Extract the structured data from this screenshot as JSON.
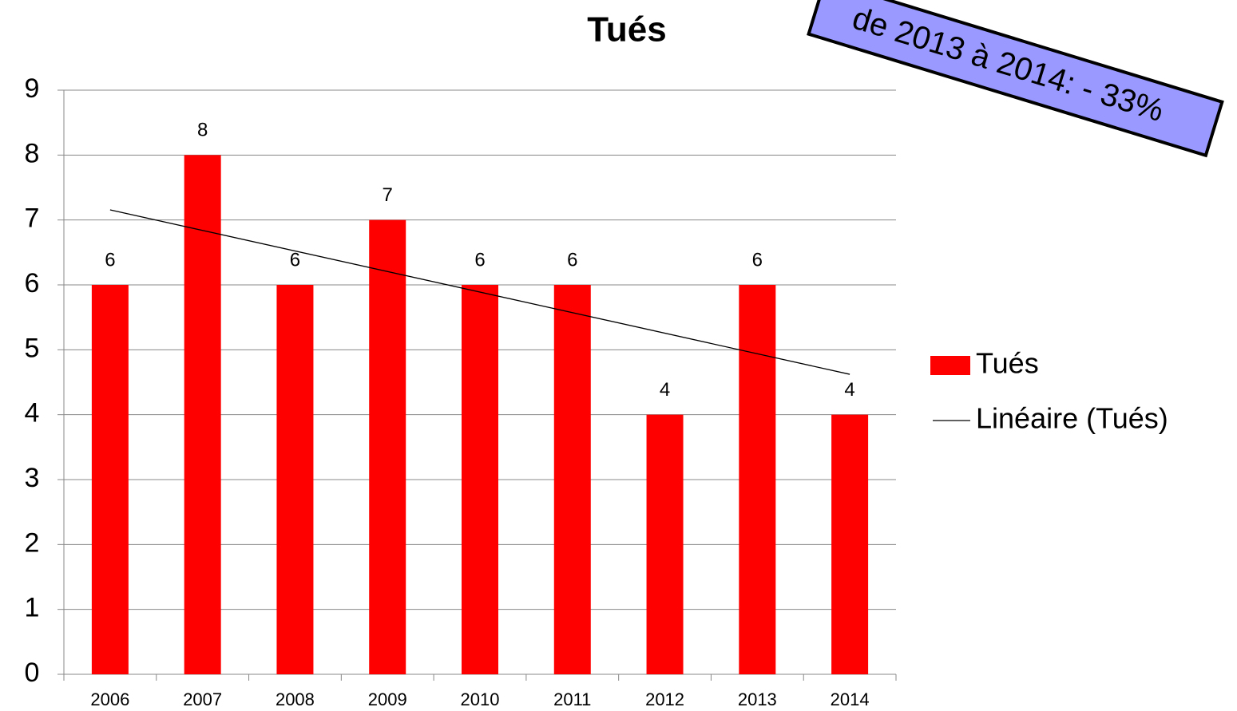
{
  "chart_data": {
    "type": "bar",
    "title": "Tués",
    "categories": [
      "2006",
      "2007",
      "2008",
      "2009",
      "2010",
      "2011",
      "2012",
      "2013",
      "2014"
    ],
    "series": [
      {
        "name": "Tués",
        "color": "#ff0000",
        "values": [
          6,
          8,
          6,
          7,
          6,
          6,
          4,
          6,
          4
        ]
      }
    ],
    "trendline": {
      "name": "Linéaire (Tués)",
      "color": "#000000"
    },
    "ylim": [
      0,
      9
    ],
    "yticks": [
      0,
      1,
      2,
      3,
      4,
      5,
      6,
      7,
      8,
      9
    ],
    "grid": true,
    "legend": "right",
    "annotation": "de 2013 à 2014: - 33%"
  }
}
